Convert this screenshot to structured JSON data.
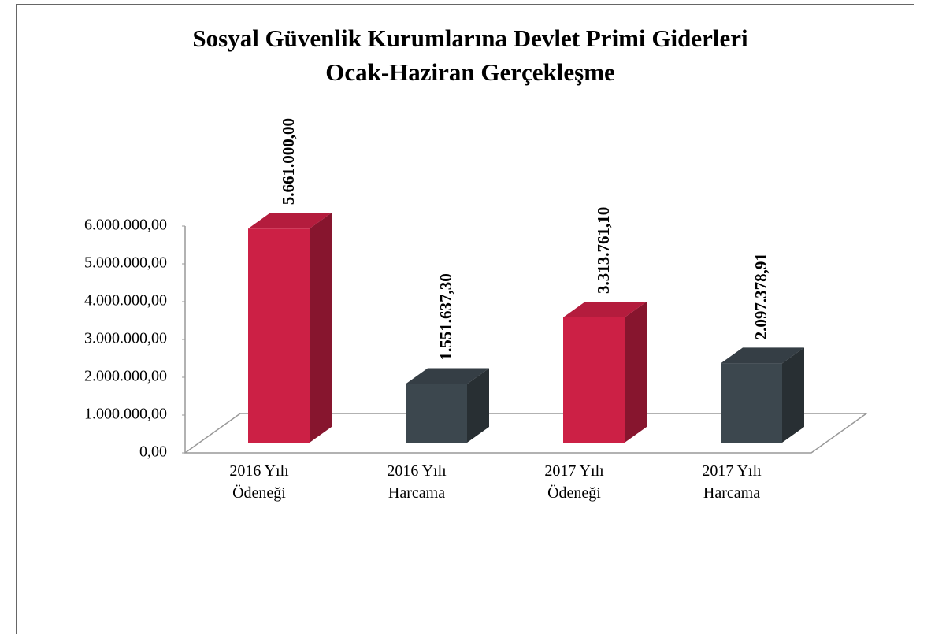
{
  "chart_data": {
    "type": "bar3d",
    "title": "Sosyal Güvenlik Kurumlarına Devlet Primi Giderleri",
    "subtitle": "Ocak-Haziran Gerçekleşme",
    "categories": [
      "2016 Yılı Ödeneği",
      "2016 Yılı Harcama",
      "2017 Yılı Ödeneği",
      "2017 Yılı Harcama"
    ],
    "values": [
      5661000,
      1551637.3,
      3313761.1,
      2097378.91
    ],
    "value_labels": [
      "5.661.000,00",
      "1.551.637,30",
      "3.313.761,10",
      "2.097.378,91"
    ],
    "colors": [
      "#cc2045",
      "#3c474e",
      "#cc2045",
      "#3c474e"
    ],
    "ylim": [
      0,
      6000000
    ],
    "yticks": [
      {
        "value": 0,
        "label": "0,00"
      },
      {
        "value": 1000000,
        "label": "1.000.000,00"
      },
      {
        "value": 2000000,
        "label": "2.000.000,00"
      },
      {
        "value": 3000000,
        "label": "3.000.000,00"
      },
      {
        "value": 4000000,
        "label": "4.000.000,00"
      },
      {
        "value": 5000000,
        "label": "5.000.000,00"
      },
      {
        "value": 6000000,
        "label": "6.000.000,00"
      }
    ],
    "grid": false
  }
}
